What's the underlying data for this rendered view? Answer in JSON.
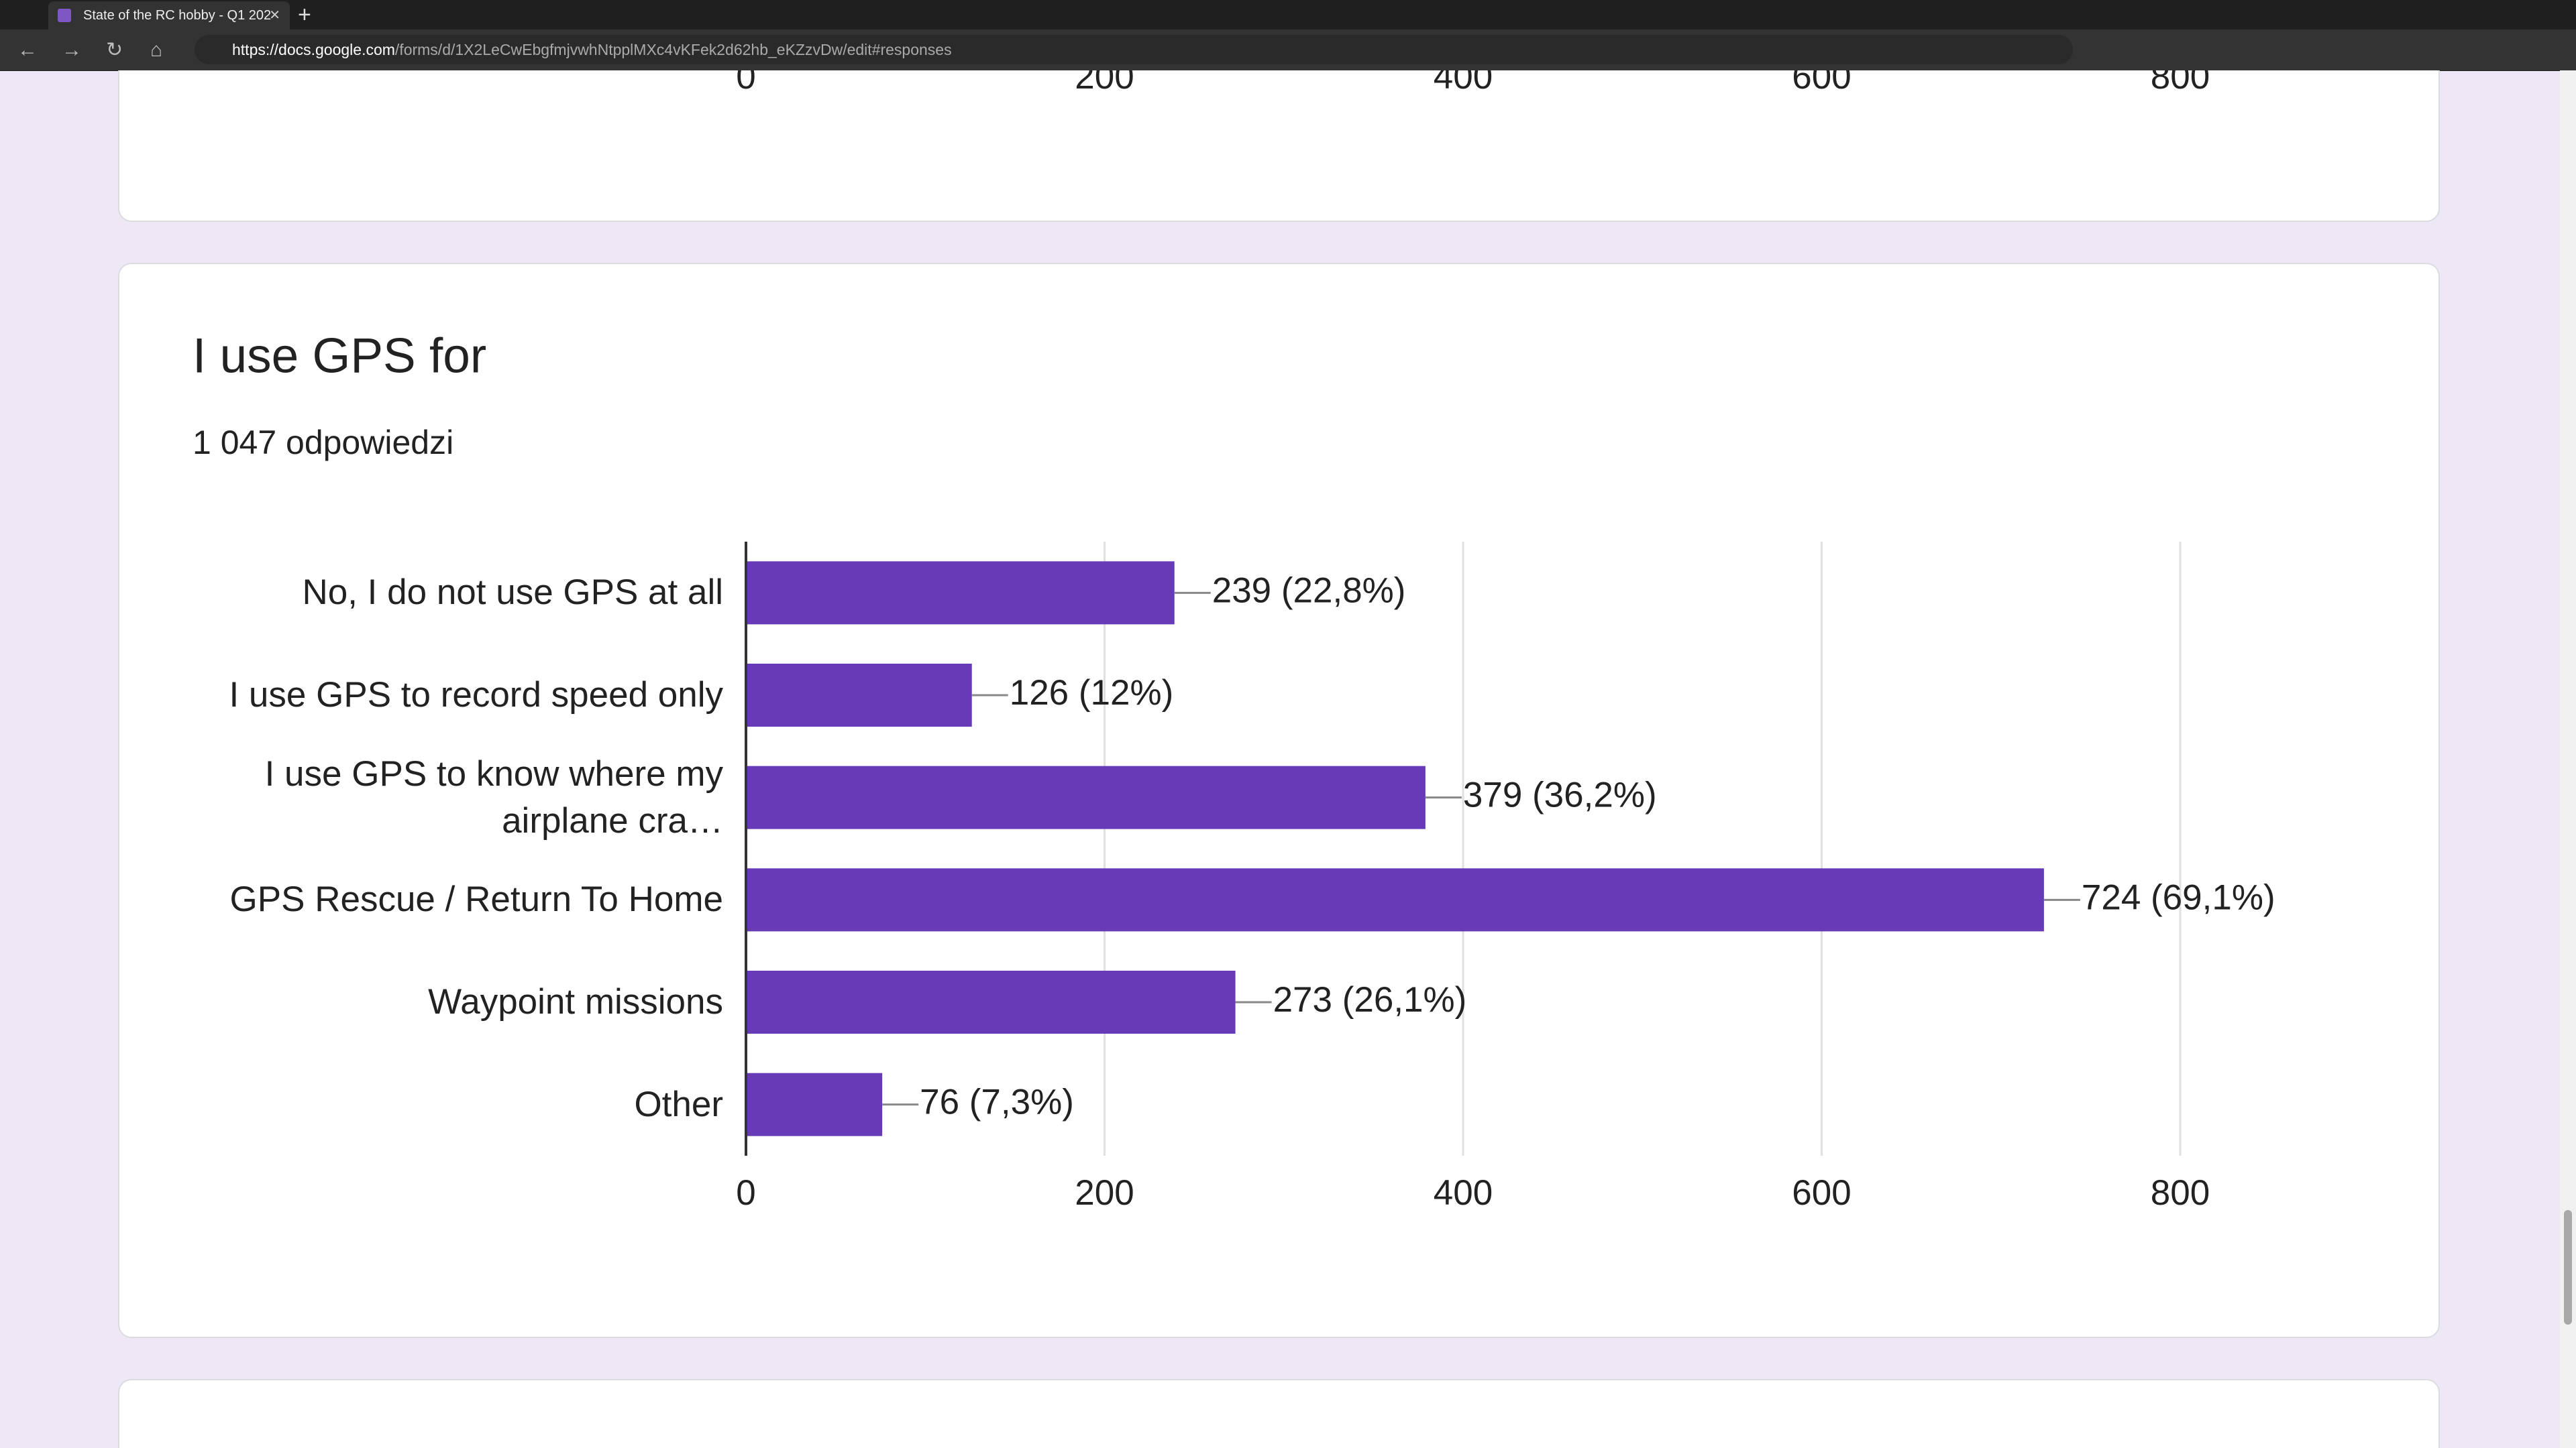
{
  "browser": {
    "tab_title": "State of the RC hobby - Q1 202",
    "url_host": "https://docs.google.com",
    "url_path": "/forms/d/1X2LeCwEbgfmjvwhNtpplMXc4vKFek2d62hb_eKZzvDw/edit#responses"
  },
  "previous_chart": {
    "xticks": [
      0,
      200,
      400,
      600,
      800
    ]
  },
  "chart_data": {
    "type": "bar",
    "orientation": "horizontal",
    "title": "I use GPS for",
    "subtitle": "1 047 odpowiedzi",
    "categories": [
      "No, I do not use GPS at all",
      "I use GPS to record speed only",
      "I use GPS to know where my\nairplane cra…",
      "GPS Rescue / Return To Home",
      "Waypoint missions",
      "Other"
    ],
    "values": [
      239,
      126,
      379,
      724,
      273,
      76
    ],
    "value_labels": [
      "239 (22,8%)",
      "126 (12%)",
      "379 (36,2%)",
      "724 (69,1%)",
      "273 (26,1%)",
      "76 (7,3%)"
    ],
    "color": "#673ab7",
    "xlim": [
      0,
      800
    ],
    "xticks": [
      0,
      200,
      400,
      600,
      800
    ],
    "grid": true
  }
}
